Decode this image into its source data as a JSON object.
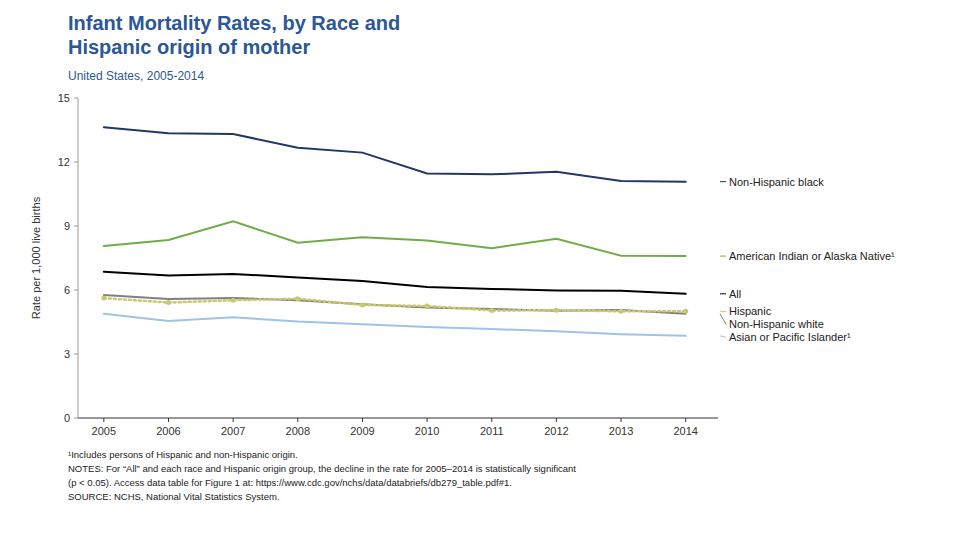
{
  "chart_data": {
    "type": "line",
    "title": [
      "Infant Mortality Rates, by Race and",
      "Hispanic origin of mother"
    ],
    "subtitle": "United States, 2005-2014",
    "y_label": "Rate per 1,000 live births",
    "x": [
      2005,
      2006,
      2007,
      2008,
      2009,
      2010,
      2011,
      2012,
      2013,
      2014
    ],
    "series": [
      {
        "name": "Non-Hispanic black",
        "color": "#1f3864",
        "line_style": "solid",
        "values": [
          13.63,
          13.35,
          13.31,
          12.67,
          12.44,
          11.46,
          11.42,
          11.54,
          11.11,
          11.08
        ]
      },
      {
        "name": "American Indian or Alaska Native¹",
        "color": "#70ad47",
        "line_style": "solid",
        "values": [
          8.06,
          8.34,
          9.22,
          8.22,
          8.47,
          8.32,
          7.96,
          8.4,
          7.61,
          7.59
        ]
      },
      {
        "name": "All",
        "color": "#000000",
        "line_style": "solid",
        "values": [
          6.86,
          6.68,
          6.75,
          6.59,
          6.42,
          6.14,
          6.05,
          5.98,
          5.96,
          5.82
        ]
      },
      {
        "name": "Non-Hispanic white",
        "color": "#808080",
        "line_style": "solid",
        "values": [
          5.76,
          5.58,
          5.63,
          5.52,
          5.33,
          5.18,
          5.11,
          5.03,
          5.06,
          4.89
        ]
      },
      {
        "name": "Hispanic",
        "color": "#c6c96e",
        "line_style": "dotted",
        "marker": "circle",
        "values": [
          5.62,
          5.41,
          5.52,
          5.59,
          5.3,
          5.25,
          5.04,
          5.05,
          5.0,
          5.0
        ]
      },
      {
        "name": "Asian or Pacific Islander¹",
        "color": "#9dc3e6",
        "line_style": "solid",
        "values": [
          4.89,
          4.55,
          4.72,
          4.52,
          4.4,
          4.27,
          4.17,
          4.07,
          3.93,
          3.85
        ]
      }
    ],
    "xlim": [
      2004.6,
      2014.5
    ],
    "xticks": [
      2005,
      2006,
      2007,
      2008,
      2009,
      2010,
      2011,
      2012,
      2013,
      2014
    ],
    "ylim": [
      0,
      15
    ],
    "yticks": [
      0,
      3,
      6,
      9,
      12,
      15
    ],
    "grid": false,
    "footnotes": [
      "¹Includes persons of Hispanic and non-Hispanic origin.",
      "NOTES: For “All” and each race and Hispanic origin group, the decline in the rate for 2005–2014 is statistically significant",
      "(p < 0.05). Access data table for Figure 1 at: https://www.cdc.gov/nchs/data/databriefs/db279_table.pdf#1.",
      "SOURCE: NCHS, National Vital Statistics System."
    ]
  }
}
